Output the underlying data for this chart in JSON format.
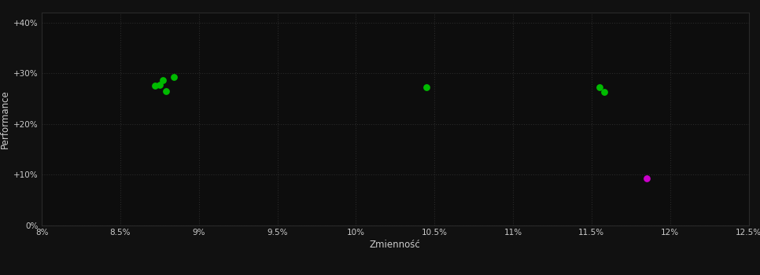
{
  "background_color": "#111111",
  "plot_bg_color": "#0d0d0d",
  "grid_color": "#2a2a2a",
  "text_color": "#cccccc",
  "xlabel": "Zmienność",
  "ylabel": "Performance",
  "xlim": [
    0.08,
    0.125
  ],
  "ylim": [
    0.0,
    0.42
  ],
  "xticks": [
    0.08,
    0.085,
    0.09,
    0.095,
    0.1,
    0.105,
    0.11,
    0.115,
    0.12,
    0.125
  ],
  "xtick_labels": [
    "8%",
    "8.5%",
    "9%",
    "9.5%",
    "10%",
    "10.5%",
    "11%",
    "11.5%",
    "12%",
    "12.5%"
  ],
  "yticks": [
    0.0,
    0.1,
    0.2,
    0.3,
    0.4
  ],
  "ytick_labels": [
    "0%",
    "+10%",
    "+20%",
    "+30%",
    "+40%"
  ],
  "green_points": [
    [
      0.0884,
      0.293
    ],
    [
      0.0877,
      0.287
    ],
    [
      0.0875,
      0.277
    ],
    [
      0.0872,
      0.275
    ],
    [
      0.0879,
      0.265
    ],
    [
      0.1045,
      0.272
    ],
    [
      0.1155,
      0.272
    ],
    [
      0.1158,
      0.263
    ]
  ],
  "magenta_points": [
    [
      0.1185,
      0.093
    ]
  ],
  "green_color": "#00bb00",
  "magenta_color": "#cc00cc",
  "marker_size": 28,
  "tick_fontsize": 7.5,
  "label_fontsize": 8.5
}
